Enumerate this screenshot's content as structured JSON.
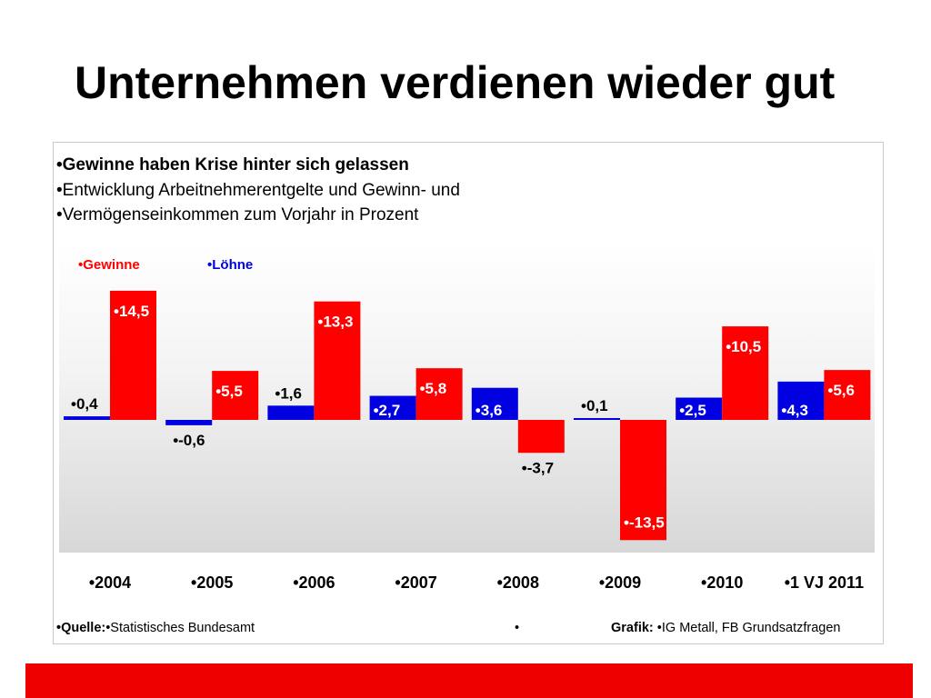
{
  "slide": {
    "title": "Unternehmen verdienen wieder gut",
    "bullets": [
      "•Gewinne haben Krise hinter sich gelassen",
      "•Entwicklung Arbeitnehmerentgelte und Gewinn- und",
      "•Vermögenseinkommen zum Vorjahr in Prozent"
    ],
    "footer": {
      "source_label": "•Quelle:",
      "source_value": "•Statistisches Bundesamt",
      "mid_bullet": "•",
      "grafik_label": "Grafik:",
      "grafik_value": "•IG Metall, FB Grundsatzfragen"
    }
  },
  "colors": {
    "gewinne": "#ff0000",
    "loehne": "#0000e0",
    "footer_bar": "#ee0000"
  },
  "chart_data": {
    "type": "bar",
    "categories": [
      "•2004",
      "•2005",
      "•2006",
      "•2007",
      "•2008",
      "•2009",
      "•2010",
      "•1 VJ 2011"
    ],
    "series": [
      {
        "name": "•Löhne",
        "values": [
          0.4,
          -0.6,
          1.6,
          2.7,
          3.6,
          0.1,
          2.5,
          4.3
        ],
        "labels": [
          "•0,4",
          "•-0,6",
          "•1,6",
          "•2,7",
          "•3,6",
          "•0,1",
          "•2,5",
          "•4,3"
        ]
      },
      {
        "name": "•Gewinne",
        "values": [
          14.5,
          5.5,
          13.3,
          5.8,
          -3.7,
          -13.5,
          10.5,
          5.6
        ],
        "labels": [
          "•14,5",
          "•5,5",
          "•13,3",
          "•5,8",
          "•-3,7",
          "•-13,5",
          "•10,5",
          "•5,6"
        ]
      }
    ],
    "legend": [
      "•Gewinne",
      "•Löhne"
    ],
    "legend_position": "top-left",
    "grid": false
  }
}
